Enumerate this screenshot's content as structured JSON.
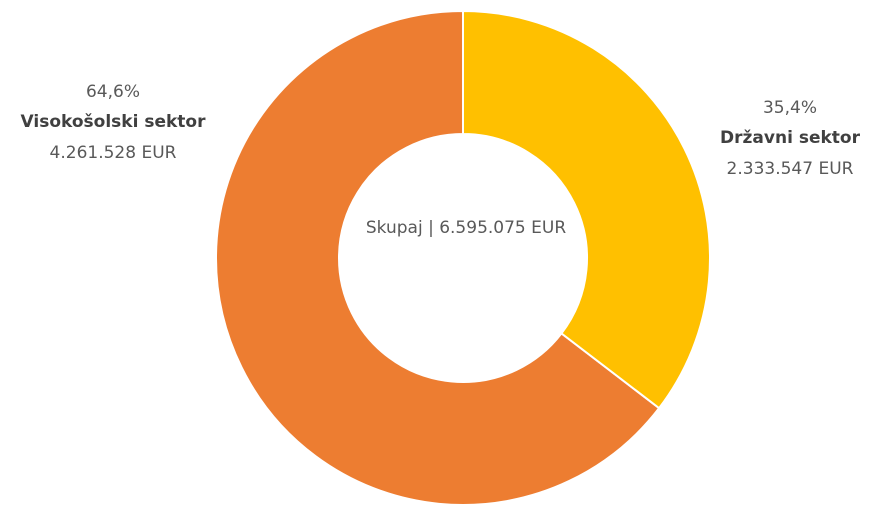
{
  "chart_data": {
    "type": "donut",
    "center_label": "Skupaj | 6.595.075 EUR",
    "categories": [
      "Državni sektor",
      "Visokošolski sektor"
    ],
    "values": [
      35.4,
      64.6
    ],
    "value_labels": [
      "35,4%",
      "64,6%"
    ],
    "amount_labels": [
      "2.333.547 EUR",
      "4.261.528 EUR"
    ],
    "colors": [
      "#FFC000",
      "#ED7D31"
    ]
  }
}
